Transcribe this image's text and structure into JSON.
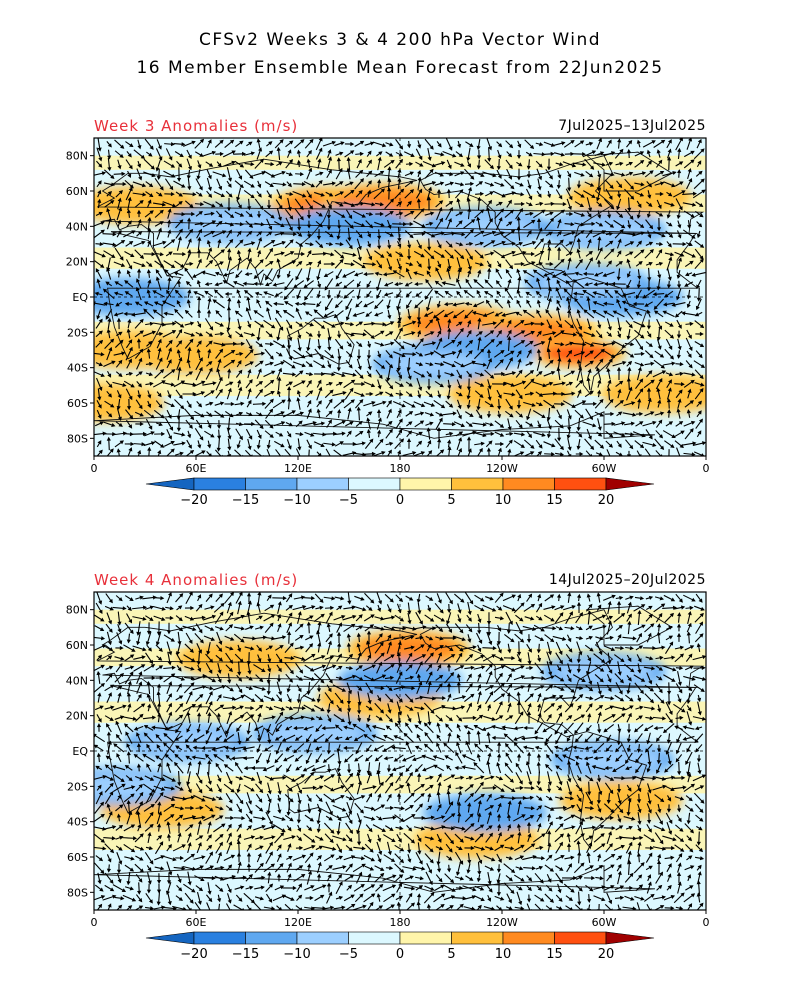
{
  "header": {
    "line1": "CFSv2 Weeks 3 & 4 200 hPa Vector Wind",
    "line2": "16 Member Ensemble Mean Forecast from 22Jun2025"
  },
  "panels": [
    {
      "label": "Week 3 Anomalies (m/s)",
      "dates": "7Jul2025–13Jul2025",
      "anomaly_regions": [
        {
          "lon": 315,
          "lat": 57,
          "class": 6
        },
        {
          "lon": 25,
          "lat": 52,
          "class": 6
        },
        {
          "lon": 140,
          "lat": 52,
          "class": 7
        },
        {
          "lon": 170,
          "lat": 54,
          "class": 7
        },
        {
          "lon": 195,
          "lat": 20,
          "class": 6
        },
        {
          "lon": 215,
          "lat": -15,
          "class": 7
        },
        {
          "lon": 260,
          "lat": -20,
          "class": 7
        },
        {
          "lon": 285,
          "lat": -32,
          "class": 8
        },
        {
          "lon": 20,
          "lat": -30,
          "class": 6
        },
        {
          "lon": 60,
          "lat": -33,
          "class": 6
        },
        {
          "lon": 335,
          "lat": -55,
          "class": 6
        },
        {
          "lon": 245,
          "lat": -55,
          "class": 6
        },
        {
          "lon": 5,
          "lat": -60,
          "class": 6
        },
        {
          "lon": 80,
          "lat": 42,
          "class": 3
        },
        {
          "lon": 150,
          "lat": 40,
          "class": 2
        },
        {
          "lon": 230,
          "lat": 40,
          "class": 3
        },
        {
          "lon": 300,
          "lat": 38,
          "class": 3
        },
        {
          "lon": 310,
          "lat": 0,
          "class": 2
        },
        {
          "lon": 20,
          "lat": 0,
          "class": 2
        },
        {
          "lon": 225,
          "lat": -30,
          "class": 2
        },
        {
          "lon": 290,
          "lat": 8,
          "class": 3
        },
        {
          "lon": 200,
          "lat": -38,
          "class": 3
        }
      ]
    },
    {
      "label": "Week 4 Anomalies (m/s)",
      "dates": "14Jul2025–20Jul2025",
      "anomaly_regions": [
        {
          "lon": 185,
          "lat": 58,
          "class": 7
        },
        {
          "lon": 85,
          "lat": 52,
          "class": 6
        },
        {
          "lon": 168,
          "lat": 30,
          "class": 6
        },
        {
          "lon": 225,
          "lat": -50,
          "class": 6
        },
        {
          "lon": 40,
          "lat": -33,
          "class": 6
        },
        {
          "lon": 310,
          "lat": -28,
          "class": 6
        },
        {
          "lon": 180,
          "lat": 40,
          "class": 2
        },
        {
          "lon": 300,
          "lat": 45,
          "class": 3
        },
        {
          "lon": 230,
          "lat": -35,
          "class": 2
        },
        {
          "lon": 305,
          "lat": -5,
          "class": 3
        },
        {
          "lon": 15,
          "lat": -20,
          "class": 3
        },
        {
          "lon": 55,
          "lat": 5,
          "class": 3
        },
        {
          "lon": 130,
          "lat": 10,
          "class": 3
        }
      ]
    }
  ],
  "map": {
    "x_ticks": [
      "0",
      "60E",
      "120E",
      "180",
      "120W",
      "60W",
      "0"
    ],
    "y_ticks": [
      "80N",
      "60N",
      "40N",
      "20N",
      "EQ",
      "20S",
      "40S",
      "60S",
      "80S"
    ]
  },
  "colorbar": {
    "labels": [
      "−20",
      "−15",
      "−10",
      "−5",
      "0",
      "5",
      "10",
      "15",
      "20"
    ],
    "colors": [
      "#1565c0",
      "#2a80e0",
      "#5fa8f0",
      "#9ccfff",
      "#dcf8ff",
      "#fff5aa",
      "#ffc03c",
      "#ff8a20",
      "#ff5010",
      "#d81400",
      "#a00000"
    ]
  }
}
